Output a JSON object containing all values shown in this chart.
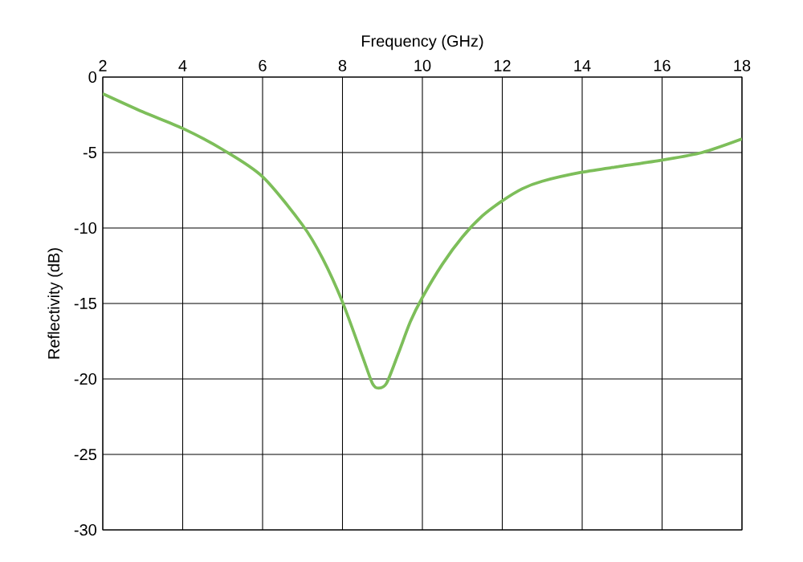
{
  "chart_data": {
    "type": "line",
    "xlabel": "Frequency (GHz)",
    "ylabel": "Reflectivity (dB)",
    "x": [
      2,
      3,
      4,
      5,
      6,
      7,
      7.5,
      8,
      8.5,
      8.75,
      8.9,
      9.1,
      9.4,
      9.7,
      10,
      10.5,
      11,
      11.5,
      12,
      12.5,
      13,
      14,
      15,
      16,
      17,
      18
    ],
    "series": [
      {
        "color": "#7dbe5a",
        "values": [
          -1.1,
          -2.3,
          -3.4,
          -4.8,
          -6.6,
          -9.8,
          -12.0,
          -14.9,
          -18.5,
          -20.3,
          -20.6,
          -20.3,
          -18.3,
          -16.2,
          -14.6,
          -12.4,
          -10.6,
          -9.2,
          -8.2,
          -7.4,
          -6.9,
          -6.3,
          -5.9,
          -5.5,
          -5.0,
          -4.1
        ]
      }
    ],
    "xlim": [
      2,
      18
    ],
    "xticks": [
      2,
      4,
      6,
      8,
      10,
      12,
      14,
      16,
      18
    ],
    "ylim": [
      -30,
      0
    ],
    "yticks": [
      -30,
      -25,
      -20,
      -15,
      -10,
      -5,
      0
    ],
    "grid": true,
    "marker": "none",
    "line_style": "solid"
  }
}
